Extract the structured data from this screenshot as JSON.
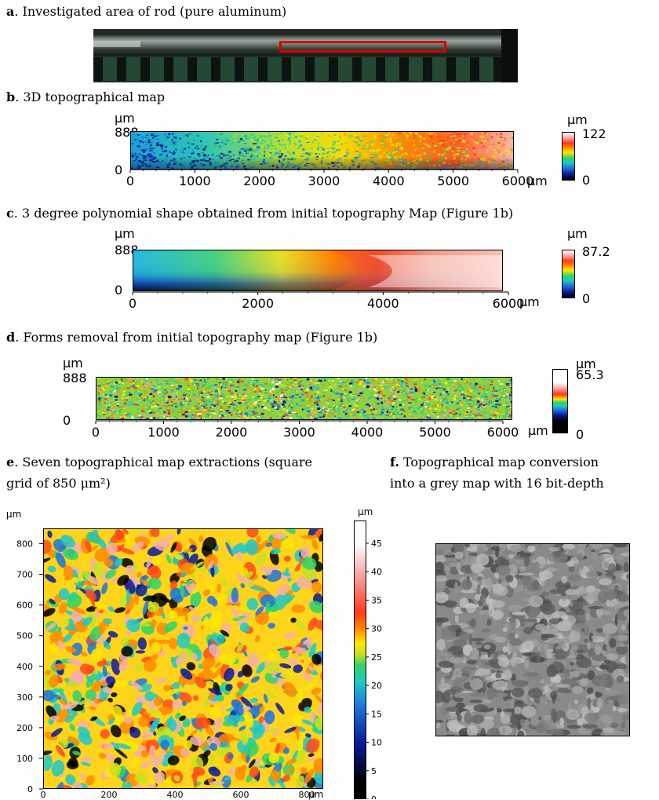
{
  "panel_a": {
    "letter": "a",
    "caption": ". Investigated area of rod (pure aluminum)"
  },
  "panel_b": {
    "letter": "b",
    "caption": ". 3D topographical map",
    "y_unit": "μm",
    "y_ticks": [
      "888",
      "0"
    ],
    "x_ticks": [
      "0",
      "1000",
      "2000",
      "3000",
      "4000",
      "5000",
      "6000"
    ],
    "x_unit": "μm",
    "cbar_unit": "μm",
    "cbar_max": "122",
    "cbar_min": "0"
  },
  "panel_c": {
    "letter": "c",
    "caption": ". 3 degree polynomial shape obtained from initial topography Map (Figure 1b)",
    "y_unit": "μm",
    "y_ticks": [
      "888",
      "0"
    ],
    "x_ticks": [
      "0",
      "2000",
      "4000",
      "6000"
    ],
    "x_unit": "μm",
    "cbar_unit": "μm",
    "cbar_max": "87.2",
    "cbar_min": "0"
  },
  "panel_d": {
    "letter": "d",
    "caption": ". Forms removal from initial topography map (Figure 1b)",
    "y_unit": "μm",
    "y_ticks": [
      "888",
      "0"
    ],
    "x_ticks": [
      "0",
      "1000",
      "2000",
      "3000",
      "4000",
      "5000",
      "6000"
    ],
    "x_unit": "μm",
    "cbar_unit": "μm",
    "cbar_max": "65.3",
    "cbar_min": "0"
  },
  "panel_e": {
    "letter": "e",
    "caption_line1": ". Seven topographical map extractions (square",
    "caption_line2": "grid of 850 μm²)",
    "y_unit": "μm",
    "y_ticks": [
      "800",
      "700",
      "600",
      "500",
      "400",
      "300",
      "200",
      "100",
      "0"
    ],
    "x_ticks": [
      "0",
      "200",
      "400",
      "600",
      "800"
    ],
    "x_unit": "μm",
    "cbar_unit": "μm",
    "cbar_ticks": [
      "45",
      "40",
      "35",
      "30",
      "25",
      "20",
      "15",
      "10",
      "5",
      "0"
    ]
  },
  "panel_f": {
    "letter": "f.",
    "caption_line1": " Topographical map conversion",
    "caption_line2": "into a grey map with 16 bit-depth"
  },
  "colors": {
    "highlight_box": "#e00000",
    "colormap": [
      "#000000",
      "#0a1a9a",
      "#1e74d8",
      "#1ec8c8",
      "#2fd36a",
      "#c8e020",
      "#ffe800",
      "#ff8a00",
      "#ff3a1a",
      "#f4a0a0",
      "#ffffff"
    ]
  }
}
